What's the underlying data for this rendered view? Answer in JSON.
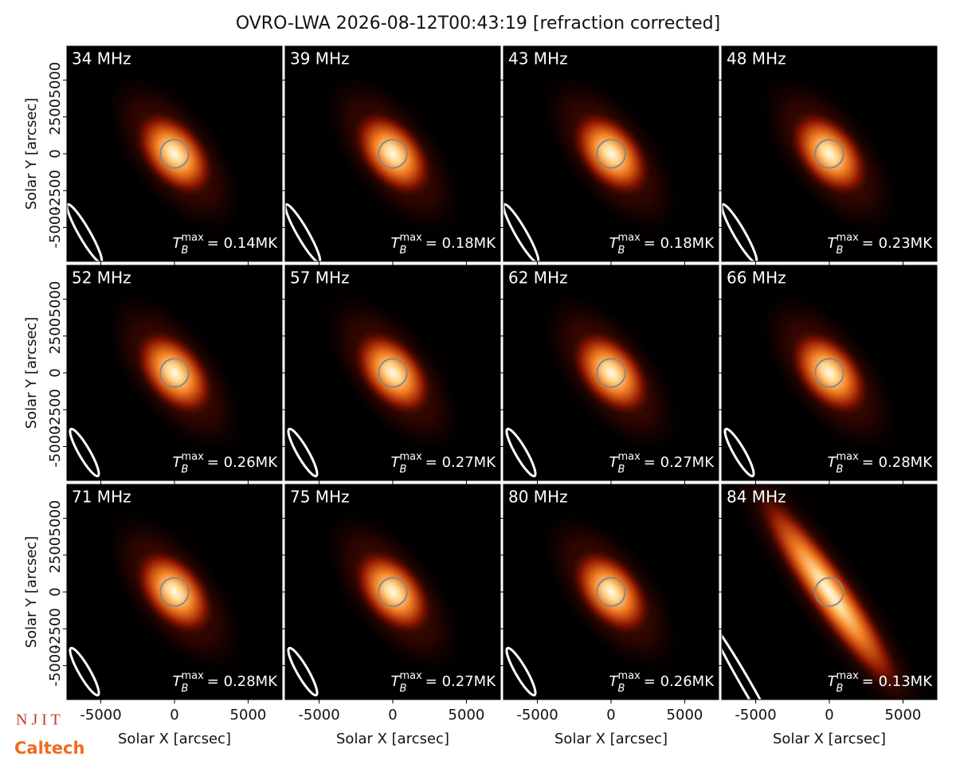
{
  "figure_title": "OVRO-LWA 2026-08-12T00:43:19 [refraction corrected]",
  "tb_symbol": "T",
  "tb_sub": "B",
  "tb_sup": "max",
  "logos": [
    "N J I T",
    "Caltech"
  ],
  "chart_data": [
    {
      "type": "image",
      "title": "34 MHz",
      "annotation": "= 0.14MK",
      "xlim": [
        -7300,
        7300
      ],
      "ylim": [
        -7300,
        7300
      ],
      "xticks": [
        -5000,
        0,
        5000
      ],
      "yticks": [
        -5000,
        -2500,
        0,
        2500,
        5000
      ],
      "ylabel": "Solar Y [arcsec]"
    },
    {
      "type": "image",
      "title": "39 MHz",
      "annotation": "= 0.18MK",
      "xlim": [
        -7300,
        7300
      ],
      "ylim": [
        -7300,
        7300
      ],
      "xticks": [
        -5000,
        0,
        5000
      ],
      "yticks": [
        -5000,
        -2500,
        0,
        2500,
        5000
      ]
    },
    {
      "type": "image",
      "title": "43 MHz",
      "annotation": "= 0.18MK",
      "xlim": [
        -7300,
        7300
      ],
      "ylim": [
        -7300,
        7300
      ],
      "xticks": [
        -5000,
        0,
        5000
      ],
      "yticks": [
        -5000,
        -2500,
        0,
        2500,
        5000
      ]
    },
    {
      "type": "image",
      "title": "48 MHz",
      "annotation": "= 0.23MK",
      "xlim": [
        -7300,
        7300
      ],
      "ylim": [
        -7300,
        7300
      ],
      "xticks": [
        -5000,
        0,
        5000
      ],
      "yticks": [
        -5000,
        -2500,
        0,
        2500,
        5000
      ]
    },
    {
      "type": "image",
      "title": "52 MHz",
      "annotation": "= 0.26MK",
      "xlim": [
        -7300,
        7300
      ],
      "ylim": [
        -7300,
        7300
      ],
      "xticks": [
        -5000,
        0,
        5000
      ],
      "yticks": [
        -5000,
        -2500,
        0,
        2500,
        5000
      ],
      "ylabel": "Solar Y [arcsec]"
    },
    {
      "type": "image",
      "title": "57 MHz",
      "annotation": "= 0.27MK",
      "xlim": [
        -7300,
        7300
      ],
      "ylim": [
        -7300,
        7300
      ],
      "xticks": [
        -5000,
        0,
        5000
      ],
      "yticks": [
        -5000,
        -2500,
        0,
        2500,
        5000
      ]
    },
    {
      "type": "image",
      "title": "62 MHz",
      "annotation": "= 0.27MK",
      "xlim": [
        -7300,
        7300
      ],
      "ylim": [
        -7300,
        7300
      ],
      "xticks": [
        -5000,
        0,
        5000
      ],
      "yticks": [
        -5000,
        -2500,
        0,
        2500,
        5000
      ]
    },
    {
      "type": "image",
      "title": "66 MHz",
      "annotation": "= 0.28MK",
      "xlim": [
        -7300,
        7300
      ],
      "ylim": [
        -7300,
        7300
      ],
      "xticks": [
        -5000,
        0,
        5000
      ],
      "yticks": [
        -5000,
        -2500,
        0,
        2500,
        5000
      ]
    },
    {
      "type": "image",
      "title": "71 MHz",
      "annotation": "= 0.28MK",
      "xlim": [
        -7300,
        7300
      ],
      "ylim": [
        -7300,
        7300
      ],
      "xticks": [
        -5000,
        0,
        5000
      ],
      "yticks": [
        -5000,
        -2500,
        0,
        2500,
        5000
      ],
      "ylabel": "Solar Y [arcsec]",
      "xlabel": "Solar X [arcsec]"
    },
    {
      "type": "image",
      "title": "75 MHz",
      "annotation": "= 0.27MK",
      "xlim": [
        -7300,
        7300
      ],
      "ylim": [
        -7300,
        7300
      ],
      "xticks": [
        -5000,
        0,
        5000
      ],
      "yticks": [
        -5000,
        -2500,
        0,
        2500,
        5000
      ],
      "xlabel": "Solar X [arcsec]"
    },
    {
      "type": "image",
      "title": "80 MHz",
      "annotation": "= 0.26MK",
      "xlim": [
        -7300,
        7300
      ],
      "ylim": [
        -7300,
        7300
      ],
      "xticks": [
        -5000,
        0,
        5000
      ],
      "yticks": [
        -5000,
        -2500,
        0,
        2500,
        5000
      ],
      "xlabel": "Solar X [arcsec]"
    },
    {
      "type": "image",
      "title": "84 MHz",
      "annotation": "= 0.13MK",
      "xlim": [
        -7300,
        7300
      ],
      "ylim": [
        -7300,
        7300
      ],
      "xticks": [
        -5000,
        0,
        5000
      ],
      "yticks": [
        -5000,
        -2500,
        0,
        2500,
        5000
      ],
      "xlabel": "Solar X [arcsec]"
    }
  ]
}
